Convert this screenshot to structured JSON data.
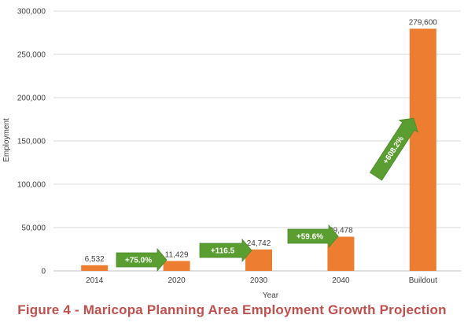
{
  "chart_data": {
    "type": "bar",
    "categories": [
      "2014",
      "2020",
      "2030",
      "2040",
      "Buildout"
    ],
    "values": [
      6532,
      11429,
      24742,
      39478,
      279600
    ],
    "data_labels": [
      "6,532",
      "11,429",
      "24,742",
      "39,478",
      "279,600"
    ],
    "ylabel": "Employment",
    "xlabel": "Year",
    "ylim": [
      0,
      300000
    ],
    "y_ticks": [
      0,
      50000,
      100000,
      150000,
      200000,
      250000,
      300000
    ],
    "y_tick_labels": [
      "0",
      "50,000",
      "100,000",
      "150,000",
      "200,000",
      "250,000",
      "300,000"
    ],
    "grid": true,
    "bar_color": "#ed7d31",
    "annotations": [
      {
        "text": "+75.0%",
        "from": "2014",
        "to": "2020"
      },
      {
        "text": "+116.5",
        "from": "2020",
        "to": "2030"
      },
      {
        "text": "+59.6%",
        "from": "2030",
        "to": "2040"
      },
      {
        "text": "+608.2%",
        "from": "2040",
        "to": "Buildout"
      }
    ],
    "annotation_color": "#5a9e32"
  },
  "caption": "Figure 4 - Maricopa Planning Area Employment Growth Projection",
  "caption_color": "#c0504d"
}
